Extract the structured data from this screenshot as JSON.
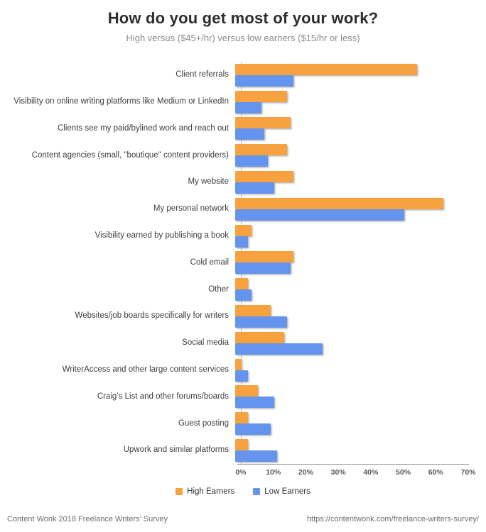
{
  "header": {
    "title": "How do you get most of your work?",
    "subtitle": "High versus ($45+/hr) versus low earners ($15/hr or less)"
  },
  "colors": {
    "high_earners": "#F7A23E",
    "low_earners": "#6494EE",
    "axis_line": "#9A9A9A",
    "title_text": "#2D2D2D",
    "subtitle_text": "#8C8C8C"
  },
  "chart_data": {
    "type": "bar",
    "orientation": "horizontal",
    "title": "How do you get most of your work?",
    "subtitle": "High versus ($45+/hr) versus low earners ($15/hr or less)",
    "xlabel": "",
    "ylabel": "",
    "xlim": [
      0,
      70
    ],
    "x_ticks": [
      "0%",
      "10%",
      "20%",
      "30%",
      "40%",
      "50%",
      "60%",
      "70%"
    ],
    "grid": false,
    "legend_position": "bottom",
    "categories": [
      "Client referrals",
      "Visibility on online writing platforms like Medium or LinkedIn",
      "Clients see my paid/bylined work and reach out",
      "Content agencies (small, \"boutique\" content providers)",
      "My website",
      "My personal network",
      "Visibility earned by publishing a book",
      "Cold email",
      "Other",
      "Websites/job boards specifically for writers",
      "Social media",
      "WriterAccess and other large content services",
      "Craig’s List and other forums/boards",
      "Guest posting",
      "Upwork and similar platforms"
    ],
    "series": [
      {
        "name": "High Earners",
        "color": "#F7A23E",
        "values": [
          56,
          16,
          17,
          16,
          18,
          64,
          5,
          18,
          4,
          11,
          15,
          2,
          7,
          4,
          4
        ]
      },
      {
        "name": "Low Earners",
        "color": "#6494EE",
        "values": [
          18,
          8,
          9,
          10,
          12,
          52,
          4,
          17,
          5,
          16,
          27,
          4,
          12,
          11,
          13
        ]
      }
    ]
  },
  "footer": {
    "left": "Content Wonk 2018 Freelance Writers’ Survey",
    "right": "https://contentwonk.com/freelance-writers-survey/"
  }
}
